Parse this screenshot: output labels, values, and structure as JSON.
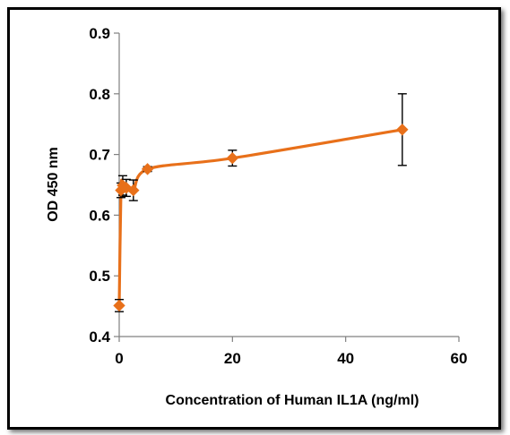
{
  "chart_data": {
    "type": "line",
    "title": "",
    "xlabel": "Concentration of Human IL1A (ng/ml)",
    "ylabel": "OD 450 nm",
    "xlim": [
      0,
      60
    ],
    "ylim": [
      0.4,
      0.9
    ],
    "xticks": [
      "0",
      "20",
      "40",
      "60"
    ],
    "yticks": [
      "0.4",
      "0.5",
      "0.6",
      "0.7",
      "0.8",
      "0.9"
    ],
    "grid": false,
    "legend": "none",
    "smoothed": true,
    "series_color": "#E8701A",
    "marker": "diamond",
    "series": [
      {
        "x": [
          0,
          0.3125,
          0.625,
          1.25,
          2.5,
          5,
          20,
          50
        ],
        "y": [
          0.451,
          0.641,
          0.649,
          0.645,
          0.641,
          0.676,
          0.694,
          0.741
        ],
        "error": [
          0.01,
          0.012,
          0.016,
          0.014,
          0.017,
          0.004,
          0.013,
          0.059
        ]
      }
    ]
  }
}
